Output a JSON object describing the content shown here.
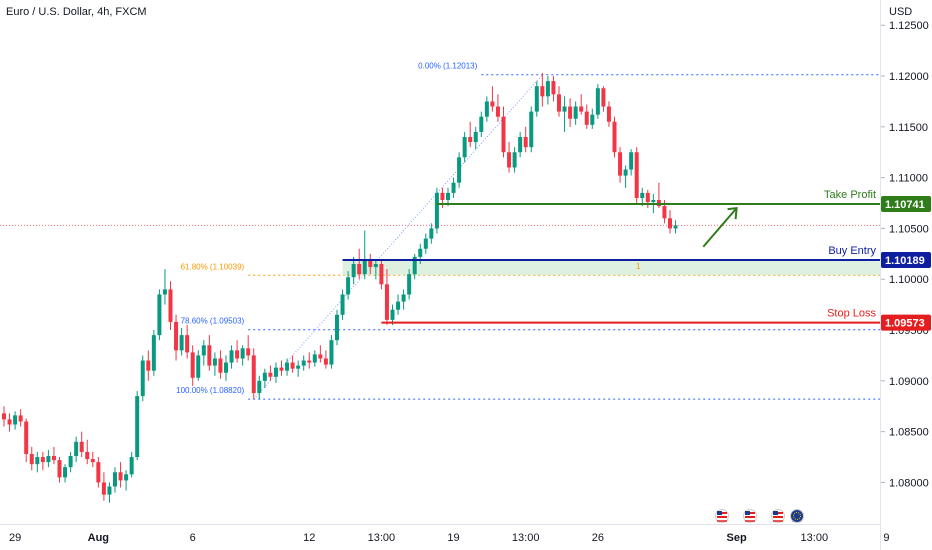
{
  "header": {
    "symbol_title": "Euro / U.S. Dollar, 4h, FXCM"
  },
  "price_axis": {
    "currency": "USD"
  },
  "chart_data": {
    "type": "candlestick",
    "ylim": [
      1.0765,
      1.1265
    ],
    "y_ticks": [
      "1.12500",
      "1.12000",
      "1.11500",
      "1.11000",
      "1.10500",
      "1.10000",
      "1.09500",
      "1.09000",
      "1.08500",
      "1.08000"
    ],
    "y_tick_values": [
      1.125,
      1.12,
      1.115,
      1.11,
      1.105,
      1.1,
      1.095,
      1.09,
      1.085,
      1.08
    ],
    "x_ticks": [
      "29",
      "Aug",
      "6",
      "12",
      "13:00",
      "19",
      "13:00",
      "26",
      "Sep",
      "13:00",
      "9"
    ],
    "x_tick_bars": [
      2,
      17,
      34,
      55,
      68,
      81,
      94,
      107,
      132,
      146,
      159
    ],
    "current_price": 1.1053,
    "fibonacci": [
      {
        "label": "0.00% (1.12013)",
        "value": 1.12013,
        "color": "#2962ff"
      },
      {
        "label": "61.80% (1.10039)",
        "value": 1.10039,
        "color": "#ff9800"
      },
      {
        "label": "78.60% (1.09503)",
        "value": 1.09503,
        "color": "#2962ff"
      },
      {
        "label": "100.00% (1.08820)",
        "value": 1.0882,
        "color": "#2962ff"
      }
    ],
    "levels": [
      {
        "name": "Take Profit",
        "value": 1.10741,
        "tag": "1.10741",
        "color": "#2e7d1a"
      },
      {
        "name": "Buy Entry",
        "value": 1.10189,
        "tag": "1.10189",
        "color": "#0d1e9e"
      },
      {
        "name": "Stop Loss",
        "value": 1.09573,
        "tag": "1.09573",
        "color": "#e41e1e"
      }
    ],
    "zone_marker": "1",
    "candles": [
      [
        1.0868,
        1.0875,
        1.0855,
        1.0862
      ],
      [
        1.0862,
        1.0868,
        1.085,
        1.0857
      ],
      [
        1.0857,
        1.087,
        1.0852,
        1.0866
      ],
      [
        1.0866,
        1.0872,
        1.0855,
        1.086
      ],
      [
        1.086,
        1.0863,
        1.082,
        1.0828
      ],
      [
        1.0828,
        1.0835,
        1.0812,
        1.0818
      ],
      [
        1.0818,
        1.083,
        1.081,
        1.0825
      ],
      [
        1.0825,
        1.083,
        1.0812,
        1.082
      ],
      [
        1.082,
        1.0832,
        1.0815,
        1.0826
      ],
      [
        1.0826,
        1.0835,
        1.0818,
        1.0822
      ],
      [
        1.0822,
        1.0825,
        1.08,
        1.0805
      ],
      [
        1.0805,
        1.0818,
        1.08,
        1.0815
      ],
      [
        1.0815,
        1.083,
        1.081,
        1.0826
      ],
      [
        1.0826,
        1.0845,
        1.082,
        1.084
      ],
      [
        1.084,
        1.085,
        1.0825,
        1.083
      ],
      [
        1.083,
        1.0842,
        1.0818,
        1.0823
      ],
      [
        1.0823,
        1.083,
        1.0815,
        1.082
      ],
      [
        1.082,
        1.0825,
        1.0795,
        1.08
      ],
      [
        1.08,
        1.081,
        1.0782,
        1.0788
      ],
      [
        1.0788,
        1.08,
        1.078,
        1.0796
      ],
      [
        1.0796,
        1.0815,
        1.079,
        1.081
      ],
      [
        1.081,
        1.082,
        1.0795,
        1.0802
      ],
      [
        1.0802,
        1.0812,
        1.0792,
        1.0808
      ],
      [
        1.0808,
        1.083,
        1.0805,
        1.0825
      ],
      [
        1.0825,
        1.089,
        1.0822,
        1.0885
      ],
      [
        1.0885,
        1.0925,
        1.088,
        1.092
      ],
      [
        1.092,
        1.093,
        1.09,
        1.091
      ],
      [
        1.091,
        1.095,
        1.0905,
        1.0945
      ],
      [
        1.0945,
        1.099,
        1.094,
        1.0985
      ],
      [
        1.0985,
        1.101,
        1.0975,
        1.099
      ],
      [
        1.099,
        1.0998,
        1.095,
        1.0958
      ],
      [
        1.0958,
        1.0965,
        1.092,
        1.093
      ],
      [
        1.093,
        1.0952,
        1.0925,
        1.0945
      ],
      [
        1.0945,
        1.0955,
        1.0922,
        1.0928
      ],
      [
        1.0928,
        1.0935,
        1.0895,
        1.0903
      ],
      [
        1.0903,
        1.093,
        1.09,
        1.0925
      ],
      [
        1.0925,
        1.094,
        1.0915,
        1.0935
      ],
      [
        1.0935,
        1.0945,
        1.091,
        1.0915
      ],
      [
        1.0915,
        1.0928,
        1.0905,
        1.0922
      ],
      [
        1.0922,
        1.093,
        1.0902,
        1.0908
      ],
      [
        1.0908,
        1.0925,
        1.09,
        1.0918
      ],
      [
        1.0918,
        1.0935,
        1.0912,
        1.093
      ],
      [
        1.093,
        1.094,
        1.0918,
        1.0922
      ],
      [
        1.0922,
        1.0935,
        1.0915,
        1.0932
      ],
      [
        1.0932,
        1.0945,
        1.092,
        1.0925
      ],
      [
        1.0925,
        1.0932,
        1.0882,
        1.0888
      ],
      [
        1.0888,
        1.0905,
        1.0882,
        1.09
      ],
      [
        1.09,
        1.0912,
        1.0893,
        1.0908
      ],
      [
        1.0908,
        1.0915,
        1.09,
        1.0904
      ],
      [
        1.0904,
        1.0918,
        1.0898,
        1.0913
      ],
      [
        1.0913,
        1.092,
        1.0905,
        1.091
      ],
      [
        1.091,
        1.0922,
        1.0905,
        1.0918
      ],
      [
        1.0918,
        1.0925,
        1.0908,
        1.0912
      ],
      [
        1.0912,
        1.092,
        1.0904,
        1.0915
      ],
      [
        1.0915,
        1.0925,
        1.091,
        1.092
      ],
      [
        1.092,
        1.0928,
        1.0912,
        1.0918
      ],
      [
        1.0918,
        1.093,
        1.0914,
        1.0926
      ],
      [
        1.0926,
        1.0935,
        1.0918,
        1.0922
      ],
      [
        1.0922,
        1.093,
        1.0912,
        1.0916
      ],
      [
        1.0916,
        1.0945,
        1.0912,
        1.094
      ],
      [
        1.094,
        1.097,
        1.0935,
        1.0965
      ],
      [
        1.0965,
        1.099,
        1.096,
        1.0985
      ],
      [
        1.0985,
        1.1008,
        1.098,
        1.1002
      ],
      [
        1.1002,
        1.1022,
        1.0995,
        1.1015
      ],
      [
        1.1015,
        1.103,
        1.1,
        1.1005
      ],
      [
        1.1005,
        1.1048,
        1.1,
        1.1018
      ],
      [
        1.1018,
        1.1025,
        1.1005,
        1.1012
      ],
      [
        1.1012,
        1.102,
        1.1,
        1.1015
      ],
      [
        1.1015,
        1.102,
        1.099,
        1.0995
      ],
      [
        1.0995,
        1.101,
        1.0955,
        1.096
      ],
      [
        1.096,
        1.0975,
        1.0955,
        1.097
      ],
      [
        1.097,
        1.0985,
        1.0965,
        1.0978
      ],
      [
        1.0978,
        1.099,
        1.097,
        1.0985
      ],
      [
        1.0985,
        1.101,
        1.098,
        1.1005
      ],
      [
        1.1005,
        1.1025,
        1.1,
        1.1022
      ],
      [
        1.1022,
        1.1035,
        1.1015,
        1.103
      ],
      [
        1.103,
        1.1045,
        1.1025,
        1.104
      ],
      [
        1.104,
        1.1055,
        1.1035,
        1.105
      ],
      [
        1.105,
        1.109,
        1.1045,
        1.1085
      ],
      [
        1.1085,
        1.109,
        1.107,
        1.1078
      ],
      [
        1.1078,
        1.109,
        1.1072,
        1.1085
      ],
      [
        1.1085,
        1.11,
        1.108,
        1.1095
      ],
      [
        1.1095,
        1.1125,
        1.109,
        1.112
      ],
      [
        1.112,
        1.1145,
        1.1115,
        1.114
      ],
      [
        1.114,
        1.1155,
        1.113,
        1.1135
      ],
      [
        1.1135,
        1.115,
        1.1128,
        1.1145
      ],
      [
        1.1145,
        1.1165,
        1.114,
        1.116
      ],
      [
        1.116,
        1.118,
        1.1155,
        1.1175
      ],
      [
        1.1175,
        1.119,
        1.1165,
        1.117
      ],
      [
        1.117,
        1.1182,
        1.1155,
        1.116
      ],
      [
        1.116,
        1.117,
        1.112,
        1.1125
      ],
      [
        1.1125,
        1.1135,
        1.1105,
        1.111
      ],
      [
        1.111,
        1.113,
        1.1105,
        1.1125
      ],
      [
        1.1125,
        1.1145,
        1.112,
        1.114
      ],
      [
        1.114,
        1.115,
        1.1125,
        1.113
      ],
      [
        1.113,
        1.117,
        1.1125,
        1.1165
      ],
      [
        1.1165,
        1.1195,
        1.116,
        1.119
      ],
      [
        1.119,
        1.1203,
        1.117,
        1.118
      ],
      [
        1.118,
        1.12,
        1.1172,
        1.1195
      ],
      [
        1.1195,
        1.12,
        1.1175,
        1.1182
      ],
      [
        1.1182,
        1.119,
        1.116,
        1.1165
      ],
      [
        1.1165,
        1.118,
        1.1145,
        1.117
      ],
      [
        1.117,
        1.1178,
        1.115,
        1.1158
      ],
      [
        1.1158,
        1.1175,
        1.1152,
        1.117
      ],
      [
        1.117,
        1.1182,
        1.1162,
        1.1165
      ],
      [
        1.1165,
        1.1172,
        1.1148,
        1.1152
      ],
      [
        1.1152,
        1.1168,
        1.1148,
        1.1162
      ],
      [
        1.1162,
        1.1192,
        1.1158,
        1.1188
      ],
      [
        1.1188,
        1.119,
        1.1165,
        1.117
      ],
      [
        1.117,
        1.1175,
        1.115,
        1.1155
      ],
      [
        1.1155,
        1.116,
        1.112,
        1.1125
      ],
      [
        1.1125,
        1.113,
        1.1095,
        1.1102
      ],
      [
        1.1102,
        1.1112,
        1.109,
        1.1108
      ],
      [
        1.1108,
        1.1128,
        1.1102,
        1.1125
      ],
      [
        1.1125,
        1.113,
        1.1075,
        1.108
      ],
      [
        1.108,
        1.109,
        1.1072,
        1.1085
      ],
      [
        1.1085,
        1.1088,
        1.107,
        1.1076
      ],
      [
        1.1076,
        1.1084,
        1.1065,
        1.1078
      ],
      [
        1.1078,
        1.1095,
        1.107,
        1.1072
      ],
      [
        1.1072,
        1.1078,
        1.1055,
        1.106
      ],
      [
        1.106,
        1.1068,
        1.1045,
        1.105
      ],
      [
        1.105,
        1.1058,
        1.1045,
        1.1053
      ]
    ]
  }
}
